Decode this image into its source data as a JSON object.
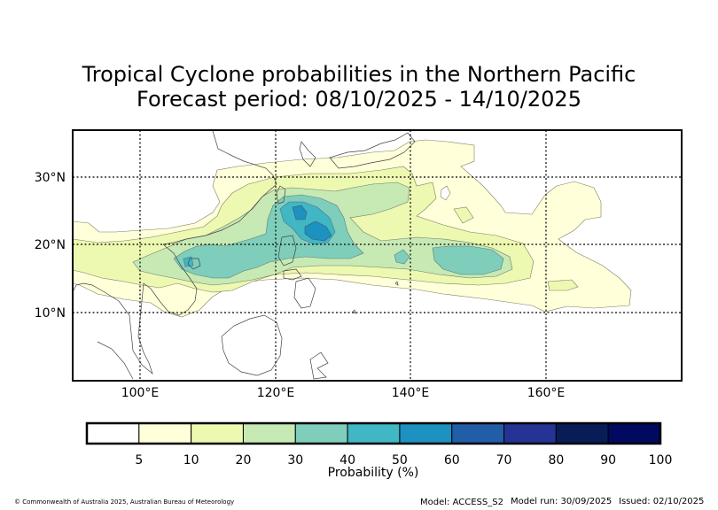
{
  "title": {
    "line1": "Tropical Cyclone probabilities in the Northern Pacific",
    "line2": "Forecast period: 08/10/2025 - 14/10/2025"
  },
  "map": {
    "lon_range": [
      90,
      180
    ],
    "lat_range": [
      0,
      37
    ],
    "grid_lons": [
      100,
      120,
      140,
      160
    ],
    "grid_lats": [
      10,
      20,
      30
    ],
    "lon_labels": [
      "100°E",
      "120°E",
      "140°E",
      "160°E"
    ],
    "lat_labels": [
      "10°N",
      "20°N",
      "30°N"
    ]
  },
  "colorbar": {
    "label": "Probability (%)",
    "tick_labels": [
      "5",
      "10",
      "20",
      "30",
      "40",
      "50",
      "60",
      "70",
      "80",
      "90",
      "100"
    ],
    "colors": [
      "#ffffff",
      "#ffffd9",
      "#edf8b1",
      "#c7e9b4",
      "#7fcdbb",
      "#41b6c4",
      "#1d91c0",
      "#225ea8",
      "#253494",
      "#081d58",
      "#010a5e"
    ]
  },
  "footer": {
    "copyright": "© Commonwealth of Australia 2025, Australian Bureau of Meteorology",
    "model": "Model: ACCESS_S2",
    "model_run": "Model run: 30/09/2025",
    "issued": "Issued: 02/10/2025"
  }
}
